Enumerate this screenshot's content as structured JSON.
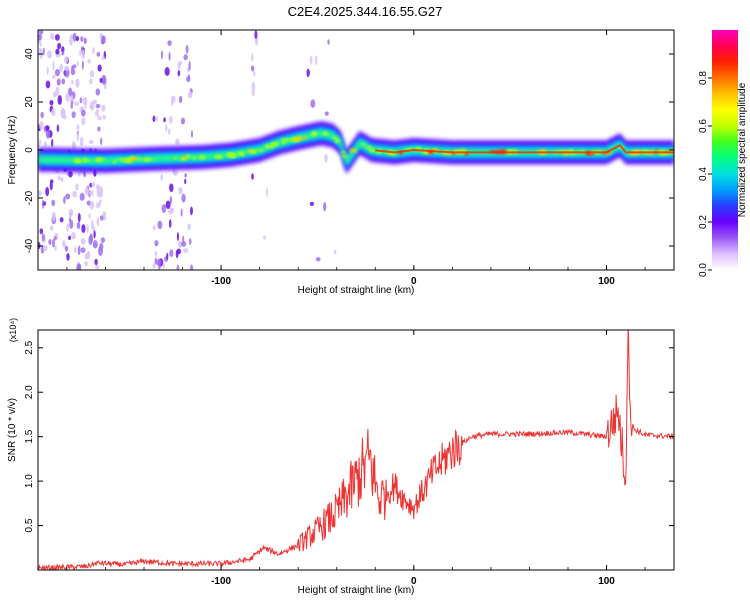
{
  "title": "C2E4.2025.344.16.55.G27",
  "chart_data": [
    {
      "type": "heatmap",
      "xlabel": "Height of straight line (km)",
      "ylabel": "Frequency (Hz)",
      "xlim": [
        -195,
        135
      ],
      "ylim": [
        -50,
        50
      ],
      "xticks": [
        -100,
        0,
        100
      ],
      "yticks": [
        -40,
        -20,
        0,
        20,
        40
      ],
      "colorbar": {
        "label": "Normalized spectral amplitude",
        "range": [
          0,
          1
        ],
        "ticks": [
          "0.0",
          "0.2",
          "0.4",
          "0.6",
          "0.8"
        ],
        "tick_values": [
          0,
          0.2,
          0.4,
          0.6,
          0.8
        ],
        "colors": [
          "#ffffff",
          "#dfbfff",
          "#9b59f5",
          "#6a00ff",
          "#2a3cff",
          "#00a0ff",
          "#00e0e0",
          "#00ff80",
          "#40ff20",
          "#c0ff00",
          "#ffff00",
          "#ffc000",
          "#ff7000",
          "#ff2000",
          "#ff0050",
          "#ff00c0"
        ]
      },
      "ridge": [
        {
          "x": -195,
          "y": -4
        },
        {
          "x": -160,
          "y": -4.5
        },
        {
          "x": -130,
          "y": -3.5
        },
        {
          "x": -110,
          "y": -3
        },
        {
          "x": -95,
          "y": -2
        },
        {
          "x": -80,
          "y": 0
        },
        {
          "x": -70,
          "y": 3
        },
        {
          "x": -60,
          "y": 5
        },
        {
          "x": -48,
          "y": 7
        },
        {
          "x": -42,
          "y": 6
        },
        {
          "x": -38,
          "y": 3
        },
        {
          "x": -35,
          "y": -5
        },
        {
          "x": -28,
          "y": 3
        },
        {
          "x": -22,
          "y": 0
        },
        {
          "x": -10,
          "y": -1
        },
        {
          "x": 0,
          "y": 0
        },
        {
          "x": 20,
          "y": -1
        },
        {
          "x": 60,
          "y": -1
        },
        {
          "x": 100,
          "y": -1
        },
        {
          "x": 107,
          "y": 2
        },
        {
          "x": 110,
          "y": -1
        },
        {
          "x": 135,
          "y": -1
        }
      ]
    },
    {
      "type": "line",
      "xlabel": "Height of straight line (km)",
      "ylabel": "SNR (10 * v/v)",
      "yscale_label": "(x10⁴)",
      "xlim": [
        -195,
        135
      ],
      "ylim": [
        0,
        2.7
      ],
      "xticks": [
        -100,
        0,
        100
      ],
      "yticks": [
        0.5,
        1.0,
        1.5,
        2.0,
        2.5
      ],
      "series": [
        {
          "color": "#ee3333",
          "points": [
            {
              "x": -195,
              "y": 0.02
            },
            {
              "x": -170,
              "y": 0.04
            },
            {
              "x": -164,
              "y": 0.08
            },
            {
              "x": -150,
              "y": 0.06
            },
            {
              "x": -140,
              "y": 0.1
            },
            {
              "x": -125,
              "y": 0.07
            },
            {
              "x": -100,
              "y": 0.07
            },
            {
              "x": -85,
              "y": 0.12
            },
            {
              "x": -78,
              "y": 0.25
            },
            {
              "x": -70,
              "y": 0.18
            },
            {
              "x": -60,
              "y": 0.28
            },
            {
              "x": -50,
              "y": 0.45
            },
            {
              "x": -40,
              "y": 0.65
            },
            {
              "x": -30,
              "y": 1.0
            },
            {
              "x": -23,
              "y": 1.25
            },
            {
              "x": -18,
              "y": 0.8
            },
            {
              "x": -10,
              "y": 0.95
            },
            {
              "x": -5,
              "y": 0.8
            },
            {
              "x": 0,
              "y": 0.7
            },
            {
              "x": 10,
              "y": 1.1
            },
            {
              "x": 20,
              "y": 1.35
            },
            {
              "x": 30,
              "y": 1.5
            },
            {
              "x": 40,
              "y": 1.53
            },
            {
              "x": 60,
              "y": 1.53
            },
            {
              "x": 80,
              "y": 1.55
            },
            {
              "x": 100,
              "y": 1.5
            },
            {
              "x": 106,
              "y": 1.8
            },
            {
              "x": 110,
              "y": 1.0
            },
            {
              "x": 111,
              "y": 2.7
            },
            {
              "x": 113,
              "y": 1.6
            },
            {
              "x": 120,
              "y": 1.52
            },
            {
              "x": 135,
              "y": 1.5
            }
          ]
        }
      ]
    }
  ]
}
